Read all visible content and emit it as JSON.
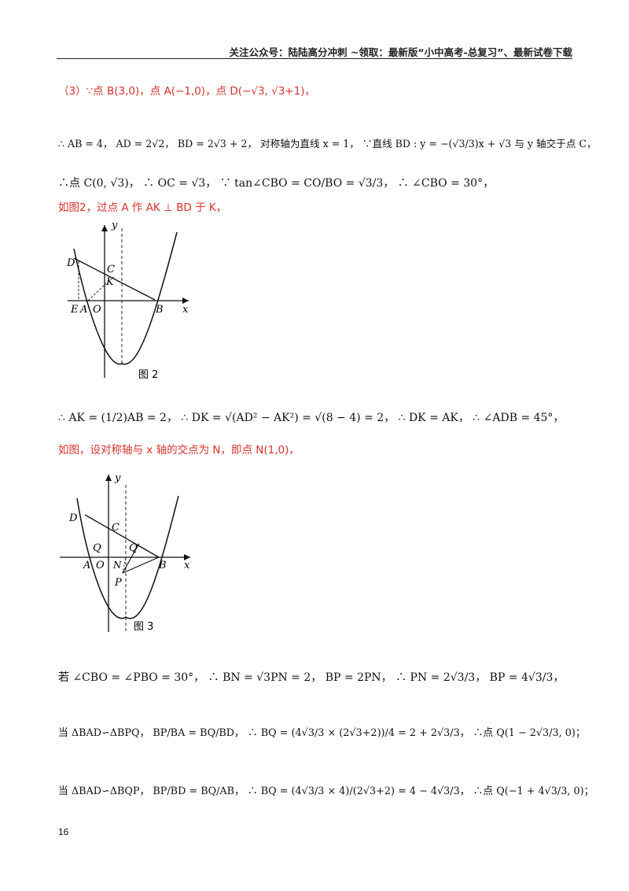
{
  "header": {
    "text": "关注公众号：陆陆高分冲刺  ~领取：最新版“小中高考-总复习”、最新试卷下载"
  },
  "lines": {
    "l1": "（3）∵点 B(3,0)，点 A(−1,0)，点 D(−√3, √3+1)，",
    "l2": "∴ AB = 4， AD = 2√2， BD = 2√3 + 2， 对称轴为直线 x = 1， ∵直线 BD : y = −(√3/3)x + √3 与 y 轴交于点 C，",
    "l3": "∴点 C(0, √3)， ∴ OC = √3， ∵ tan∠CBO = CO/BO = √3/3， ∴ ∠CBO = 30°，",
    "l4": "如图2，过点 A 作 AK ⊥ BD 于 K，",
    "l5": "∴ AK = (1/2)AB = 2， ∴ DK = √(AD² − AK²) = √(8 − 4) = 2， ∴ DK = AK， ∴ ∠ADB = 45°，",
    "l6": "如图，设对称轴与 x 轴的交点为 N，即点 N(1,0)，",
    "l7": "若 ∠CBO = ∠PBO = 30°， ∴ BN = √3PN = 2， BP = 2PN， ∴ PN = 2√3/3， BP = 4√3/3，",
    "l8": "当 ΔBAD∽ΔBPQ， BP/BA = BQ/BD， ∴ BQ = (4√3/3 × (2√3+2))/4 = 2 + 2√3/3， ∴点 Q(1 − 2√3/3, 0)；",
    "l9": "当 ΔBAD∽ΔBQP， BP/BD = BQ/AB， ∴ BQ = (4√3/3 × 4)/(2√3+2) = 4 − 4√3/3， ∴点 Q(−1 + 4√3/3, 0)；"
  },
  "figure2": {
    "caption": "图 2",
    "labels": {
      "y": "y",
      "x": "x",
      "D": "D",
      "C": "C",
      "K": "K",
      "E": "E",
      "A": "A",
      "O": "O",
      "B": "B"
    }
  },
  "figure3": {
    "caption": "图 3",
    "labels": {
      "y": "y",
      "x": "x",
      "D": "D",
      "C": "C",
      "Q": "Q",
      "Qp": "Q'",
      "A": "A",
      "O": "O",
      "N": "N",
      "P": "P",
      "B": "B"
    }
  },
  "page_number": "16"
}
